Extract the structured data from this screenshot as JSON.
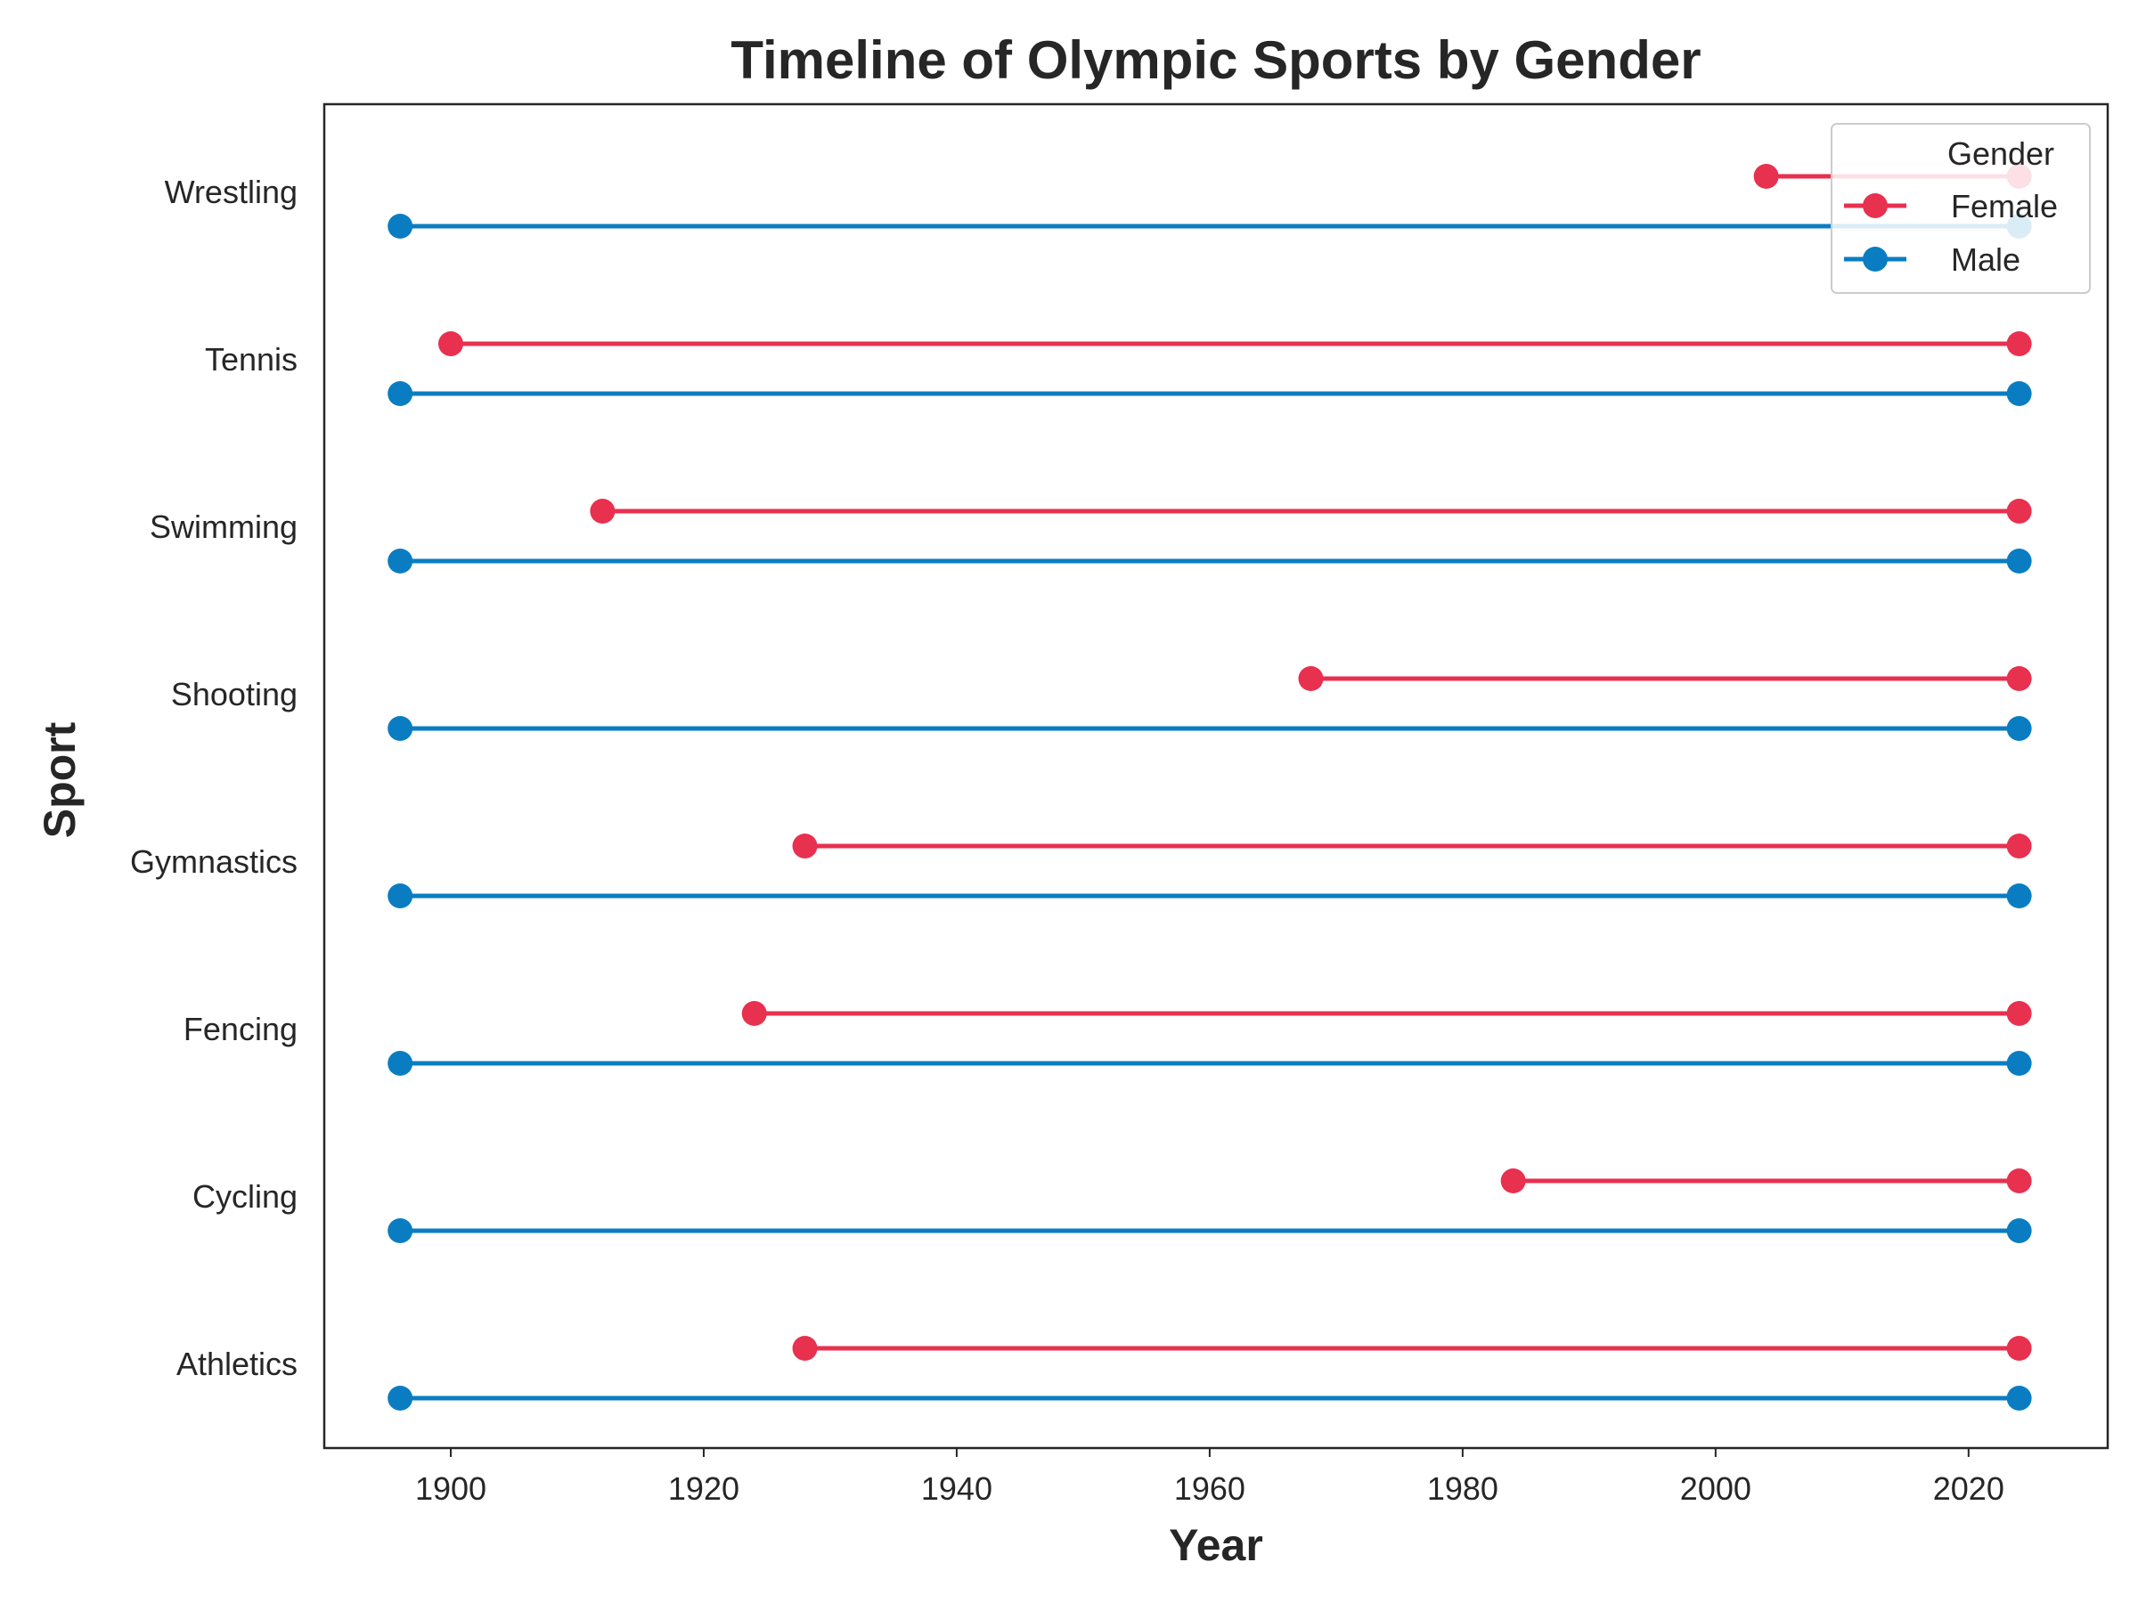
{
  "chart_data": {
    "type": "line",
    "title": "Timeline of Olympic Sports by Gender",
    "xlabel": "Year",
    "ylabel": "Sport",
    "xlim": [
      1890,
      2031
    ],
    "xticks": [
      1900,
      1920,
      1940,
      1960,
      1980,
      2000,
      2020
    ],
    "tick_labels_x": [
      "1900",
      "1920",
      "1940",
      "1960",
      "1980",
      "2000",
      "2020"
    ],
    "categories": [
      "Athletics",
      "Cycling",
      "Fencing",
      "Gymnastics",
      "Shooting",
      "Swimming",
      "Tennis",
      "Wrestling"
    ],
    "grid": false,
    "legend": {
      "title": "Gender",
      "placement": "upper right",
      "entries": [
        "Female",
        "Male"
      ]
    },
    "series": [
      {
        "name": "Female",
        "color": "#e8304f",
        "segments": [
          {
            "sport": "Athletics",
            "start": 1928,
            "end": 2024
          },
          {
            "sport": "Cycling",
            "start": 1984,
            "end": 2024
          },
          {
            "sport": "Fencing",
            "start": 1924,
            "end": 2024
          },
          {
            "sport": "Gymnastics",
            "start": 1928,
            "end": 2024
          },
          {
            "sport": "Shooting",
            "start": 1968,
            "end": 2024
          },
          {
            "sport": "Swimming",
            "start": 1912,
            "end": 2024
          },
          {
            "sport": "Tennis",
            "start": 1900,
            "end": 2024
          },
          {
            "sport": "Wrestling",
            "start": 2004,
            "end": 2024
          }
        ]
      },
      {
        "name": "Male",
        "color": "#0a7dc2",
        "segments": [
          {
            "sport": "Athletics",
            "start": 1896,
            "end": 2024
          },
          {
            "sport": "Cycling",
            "start": 1896,
            "end": 2024
          },
          {
            "sport": "Fencing",
            "start": 1896,
            "end": 2024
          },
          {
            "sport": "Gymnastics",
            "start": 1896,
            "end": 2024
          },
          {
            "sport": "Shooting",
            "start": 1896,
            "end": 2024
          },
          {
            "sport": "Swimming",
            "start": 1896,
            "end": 2024
          },
          {
            "sport": "Tennis",
            "start": 1896,
            "end": 2024
          },
          {
            "sport": "Wrestling",
            "start": 1896,
            "end": 2024
          }
        ]
      }
    ]
  }
}
